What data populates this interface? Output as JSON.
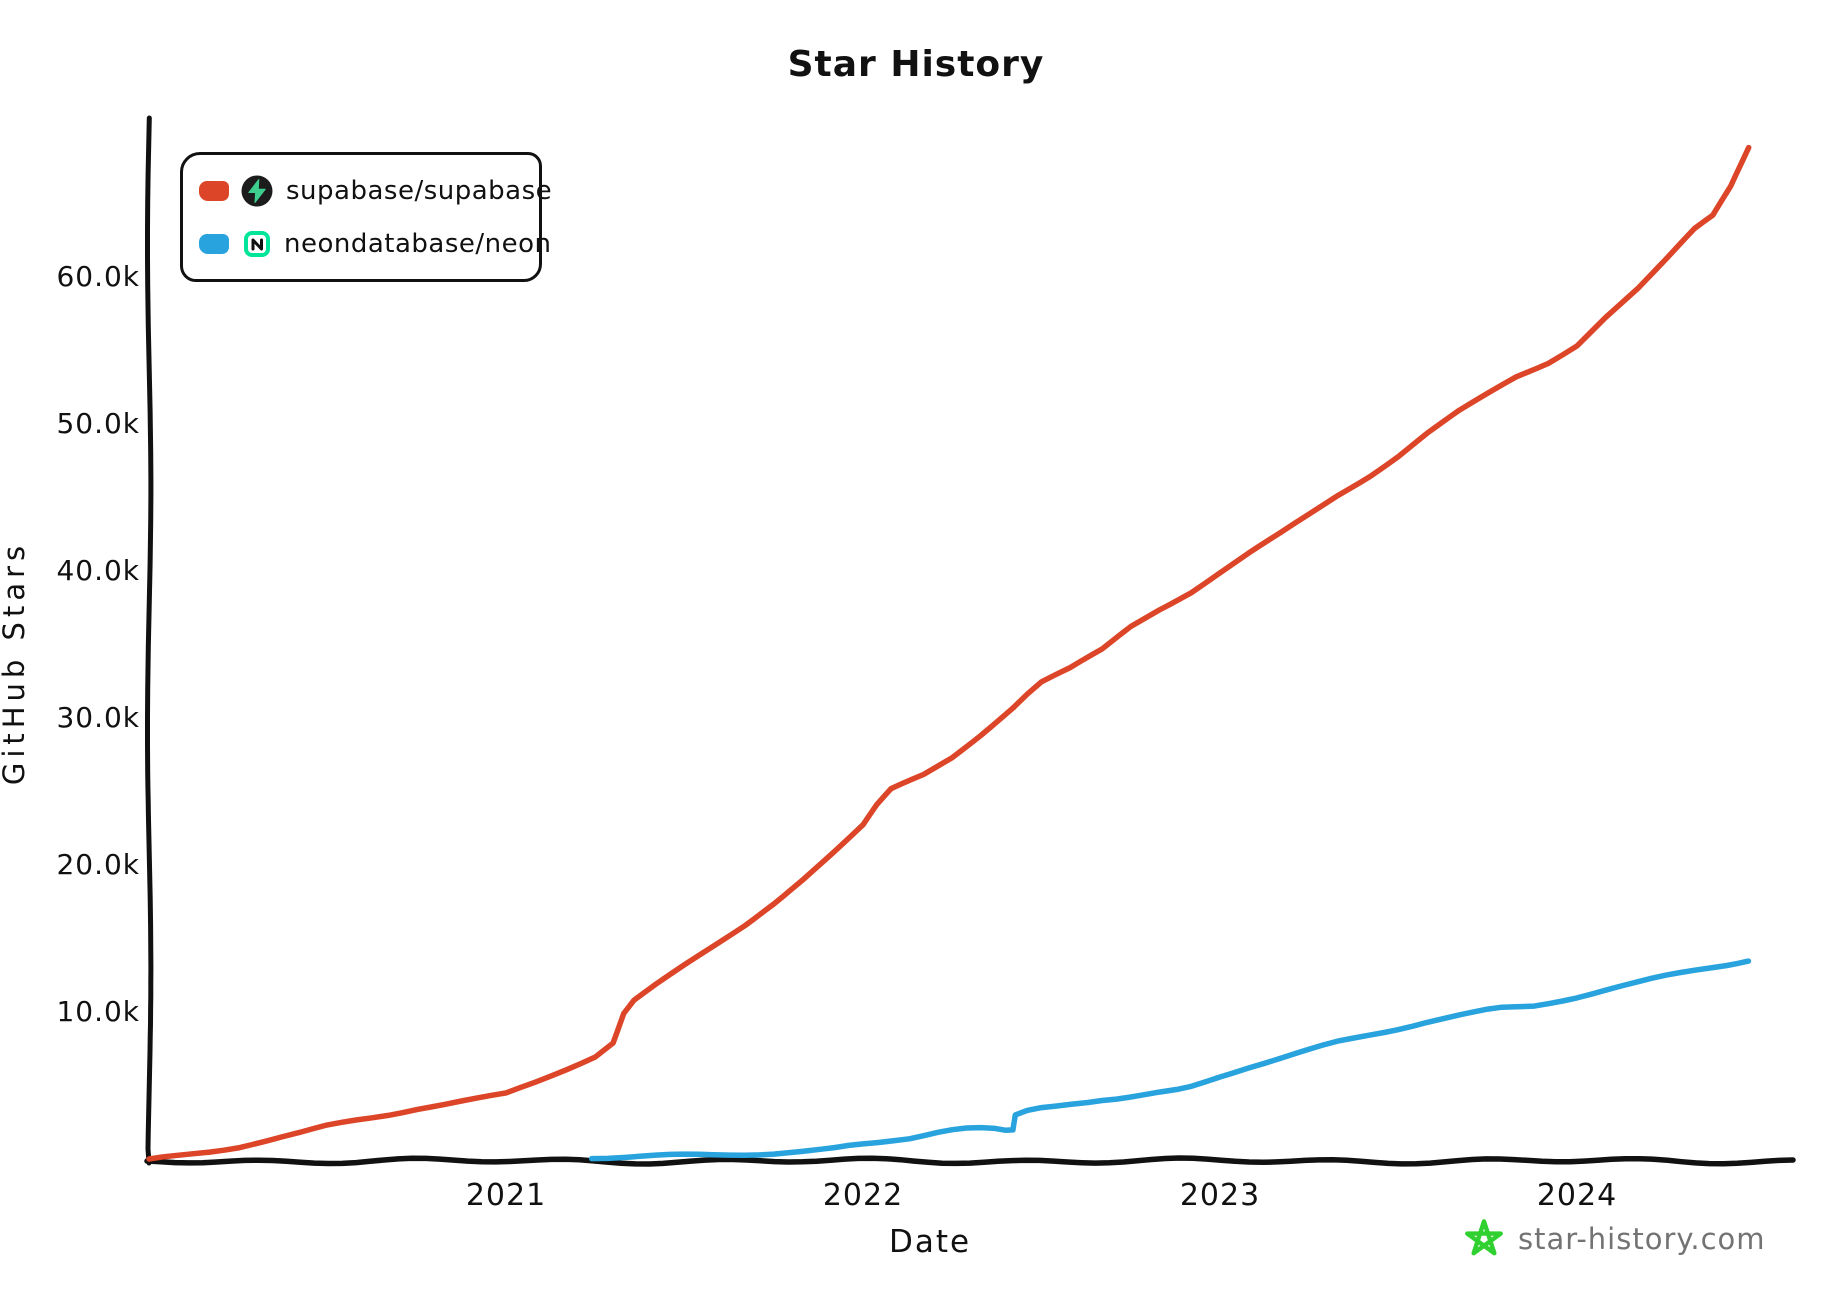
{
  "title": "Star History",
  "legend": {
    "items": [
      {
        "label": "supabase/supabase",
        "icon": "supabase-logo",
        "color": "#dd4528"
      },
      {
        "label": "neondatabase/neon",
        "icon": "neon-logo",
        "color": "#28a3dd"
      }
    ]
  },
  "watermark": {
    "icon": "star-logo",
    "text": "star-history.com",
    "star_color": "#2fd02f",
    "text_color": "#737373"
  },
  "brand_colors": {
    "supabase_green": "#3ecf8e",
    "supabase_dark": "#1c1c1c",
    "neon_green": "#00e599",
    "neon_dark": "#121212"
  },
  "chart_data": {
    "type": "line",
    "title": "Star History",
    "xlabel": "Date",
    "ylabel": "GitHub Stars",
    "x_unit": "decimal_year",
    "xlim": [
      2020.0,
      2024.62
    ],
    "ylim": [
      0,
      70800
    ],
    "grid": false,
    "legend_position": "top-left",
    "style": "xkcd-handdrawn",
    "x_ticks": [
      {
        "value": 2021,
        "label": "2021"
      },
      {
        "value": 2022,
        "label": "2022"
      },
      {
        "value": 2023,
        "label": "2023"
      },
      {
        "value": 2024,
        "label": "2024"
      }
    ],
    "y_ticks": [
      {
        "value": 10000,
        "label": "10.0k"
      },
      {
        "value": 20000,
        "label": "20.0k"
      },
      {
        "value": 30000,
        "label": "30.0k"
      },
      {
        "value": 40000,
        "label": "40.0k"
      },
      {
        "value": 50000,
        "label": "50.0k"
      },
      {
        "value": 60000,
        "label": "60.0k"
      }
    ],
    "series": [
      {
        "name": "supabase/supabase",
        "color": "#dd4528",
        "points": [
          [
            2020.0,
            0
          ],
          [
            2020.08,
            250
          ],
          [
            2020.17,
            550
          ],
          [
            2020.25,
            850
          ],
          [
            2020.33,
            1250
          ],
          [
            2020.42,
            1700
          ],
          [
            2020.5,
            2200
          ],
          [
            2020.58,
            2600
          ],
          [
            2020.67,
            3000
          ],
          [
            2020.75,
            3400
          ],
          [
            2020.83,
            3700
          ],
          [
            2020.92,
            4100
          ],
          [
            2021.0,
            4500
          ],
          [
            2021.08,
            5300
          ],
          [
            2021.17,
            6200
          ],
          [
            2021.25,
            7000
          ],
          [
            2021.3,
            7900
          ],
          [
            2021.33,
            9900
          ],
          [
            2021.36,
            10800
          ],
          [
            2021.42,
            11800
          ],
          [
            2021.5,
            13100
          ],
          [
            2021.58,
            14400
          ],
          [
            2021.67,
            15900
          ],
          [
            2021.75,
            17400
          ],
          [
            2021.83,
            19000
          ],
          [
            2021.92,
            20900
          ],
          [
            2022.0,
            22700
          ],
          [
            2022.04,
            24100
          ],
          [
            2022.08,
            25200
          ],
          [
            2022.17,
            26200
          ],
          [
            2022.25,
            27400
          ],
          [
            2022.33,
            28900
          ],
          [
            2022.42,
            30700
          ],
          [
            2022.46,
            31600
          ],
          [
            2022.5,
            32400
          ],
          [
            2022.58,
            33300
          ],
          [
            2022.67,
            34600
          ],
          [
            2022.75,
            36200
          ],
          [
            2022.83,
            37400
          ],
          [
            2022.92,
            38600
          ],
          [
            2023.0,
            39900
          ],
          [
            2023.08,
            41200
          ],
          [
            2023.17,
            42600
          ],
          [
            2023.25,
            43900
          ],
          [
            2023.33,
            45200
          ],
          [
            2023.42,
            46500
          ],
          [
            2023.5,
            47800
          ],
          [
            2023.58,
            49300
          ],
          [
            2023.67,
            50800
          ],
          [
            2023.75,
            52000
          ],
          [
            2023.83,
            53200
          ],
          [
            2023.92,
            54200
          ],
          [
            2024.0,
            55400
          ],
          [
            2024.08,
            57300
          ],
          [
            2024.17,
            59200
          ],
          [
            2024.25,
            61200
          ],
          [
            2024.33,
            63300
          ],
          [
            2024.38,
            64200
          ],
          [
            2024.43,
            66200
          ],
          [
            2024.48,
            68800
          ]
        ]
      },
      {
        "name": "neondatabase/neon",
        "color": "#28a3dd",
        "points": [
          [
            2021.24,
            30
          ],
          [
            2021.33,
            110
          ],
          [
            2021.42,
            190
          ],
          [
            2021.5,
            260
          ],
          [
            2021.58,
            310
          ],
          [
            2021.67,
            370
          ],
          [
            2021.75,
            440
          ],
          [
            2021.83,
            530
          ],
          [
            2021.88,
            620
          ],
          [
            2021.92,
            720
          ],
          [
            2021.96,
            870
          ],
          [
            2022.0,
            1000
          ],
          [
            2022.04,
            1120
          ],
          [
            2022.08,
            1260
          ],
          [
            2022.13,
            1420
          ],
          [
            2022.17,
            1620
          ],
          [
            2022.21,
            1820
          ],
          [
            2022.25,
            1950
          ],
          [
            2022.29,
            2020
          ],
          [
            2022.33,
            2020
          ],
          [
            2022.37,
            1960
          ],
          [
            2022.4,
            1850
          ],
          [
            2022.42,
            1900
          ],
          [
            2022.43,
            3000
          ],
          [
            2022.46,
            3260
          ],
          [
            2022.5,
            3500
          ],
          [
            2022.54,
            3660
          ],
          [
            2022.58,
            3810
          ],
          [
            2022.63,
            3950
          ],
          [
            2022.67,
            4060
          ],
          [
            2022.71,
            4120
          ],
          [
            2022.75,
            4220
          ],
          [
            2022.79,
            4360
          ],
          [
            2022.83,
            4520
          ],
          [
            2022.88,
            4720
          ],
          [
            2022.92,
            4960
          ],
          [
            2022.96,
            5300
          ],
          [
            2023.0,
            5650
          ],
          [
            2023.04,
            5960
          ],
          [
            2023.08,
            6260
          ],
          [
            2023.17,
            6820
          ],
          [
            2023.25,
            7360
          ],
          [
            2023.33,
            7900
          ],
          [
            2023.42,
            8400
          ],
          [
            2023.5,
            8860
          ],
          [
            2023.58,
            9360
          ],
          [
            2023.67,
            9800
          ],
          [
            2023.75,
            10160
          ],
          [
            2023.79,
            10300
          ],
          [
            2023.83,
            10360
          ],
          [
            2023.88,
            10460
          ],
          [
            2023.92,
            10660
          ],
          [
            2024.0,
            11060
          ],
          [
            2024.08,
            11500
          ],
          [
            2024.17,
            11960
          ],
          [
            2024.25,
            12400
          ],
          [
            2024.33,
            12800
          ],
          [
            2024.42,
            13200
          ],
          [
            2024.48,
            13500
          ]
        ]
      }
    ]
  }
}
